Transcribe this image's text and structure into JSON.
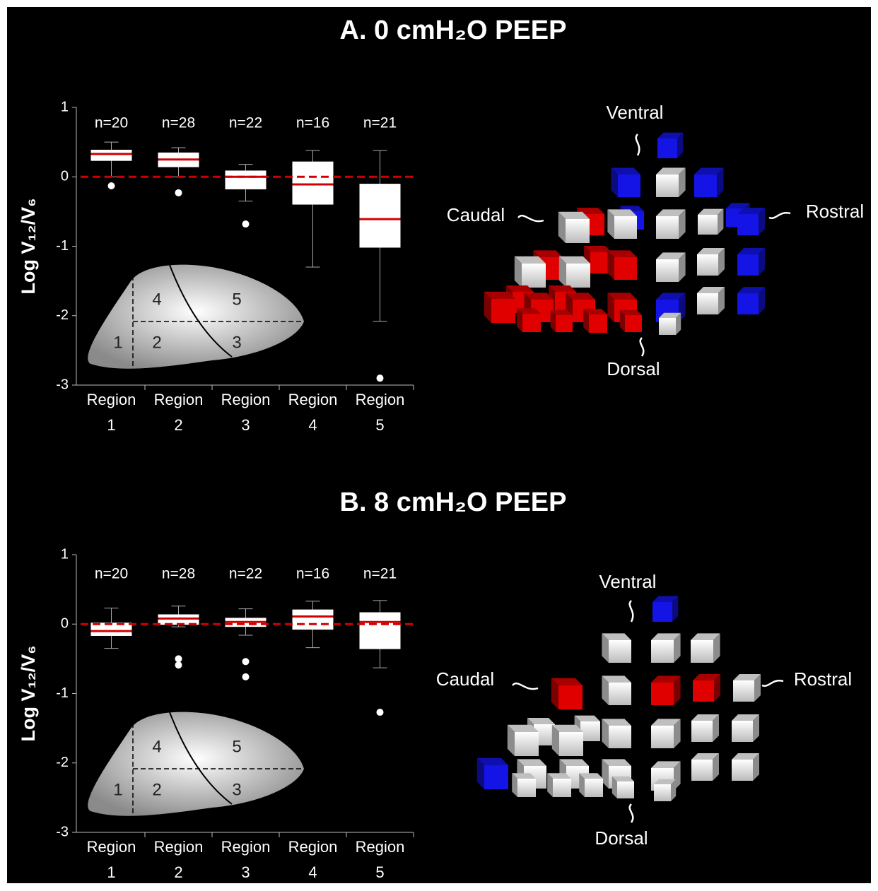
{
  "chart_data": [
    {
      "type": "box",
      "title": "A.  0 cmH₂O PEEP",
      "y_label": "Log V₁₂/V₆",
      "categories": [
        "Region 1",
        "Region 2",
        "Region 3",
        "Region 4",
        "Region 5"
      ],
      "n_labels": [
        "n=20",
        "n=28",
        "n=22",
        "n=16",
        "n=21"
      ],
      "ylim": [
        -3,
        1
      ],
      "yticks": [
        -3,
        -2,
        -1,
        0,
        1
      ],
      "reference_line": 0,
      "reference_color": "#d00000",
      "median_color": "#d00000",
      "box_color": "#ffffff",
      "boxes": [
        {
          "whisker_low": 0.0,
          "q1": 0.23,
          "median": 0.33,
          "q3": 0.39,
          "whisker_high": 0.5,
          "outliers": [
            -0.13
          ]
        },
        {
          "whisker_low": 0.0,
          "q1": 0.14,
          "median": 0.25,
          "q3": 0.35,
          "whisker_high": 0.42,
          "outliers": [
            -0.23
          ]
        },
        {
          "whisker_low": -0.35,
          "q1": -0.18,
          "median": 0.0,
          "q3": 0.09,
          "whisker_high": 0.18,
          "outliers": [
            -0.68
          ]
        },
        {
          "whisker_low": -1.3,
          "q1": -0.4,
          "median": -0.11,
          "q3": 0.22,
          "whisker_high": 0.38,
          "outliers": []
        },
        {
          "whisker_low": -2.08,
          "q1": -1.02,
          "median": -0.61,
          "q3": -0.1,
          "whisker_high": 0.38,
          "outliers": [
            -2.9
          ]
        }
      ],
      "inset_labels": [
        "1",
        "2",
        "3",
        "4",
        "5"
      ],
      "cube_labels": [
        "Ventral",
        "Caudal",
        "Rostral",
        "Dorsal"
      ]
    },
    {
      "type": "box",
      "title": "B.  8 cmH₂O PEEP",
      "y_label": "Log V₁₂/V₆",
      "categories": [
        "Region 1",
        "Region 2",
        "Region 3",
        "Region 4",
        "Region 5"
      ],
      "n_labels": [
        "n=20",
        "n=28",
        "n=22",
        "n=16",
        "n=21"
      ],
      "ylim": [
        -3,
        1
      ],
      "yticks": [
        -3,
        -2,
        -1,
        0,
        1
      ],
      "reference_line": 0,
      "reference_color": "#d00000",
      "median_color": "#d00000",
      "box_color": "#ffffff",
      "boxes": [
        {
          "whisker_low": -0.35,
          "q1": -0.17,
          "median": -0.1,
          "q3": 0.02,
          "whisker_high": 0.23,
          "outliers": []
        },
        {
          "whisker_low": -0.04,
          "q1": -0.01,
          "median": 0.08,
          "q3": 0.14,
          "whisker_high": 0.26,
          "outliers": [
            -0.5,
            -0.59
          ]
        },
        {
          "whisker_low": -0.16,
          "q1": -0.04,
          "median": 0.03,
          "q3": 0.09,
          "whisker_high": 0.22,
          "outliers": [
            -0.54,
            -0.76
          ]
        },
        {
          "whisker_low": -0.34,
          "q1": -0.08,
          "median": 0.11,
          "q3": 0.21,
          "whisker_high": 0.33,
          "outliers": []
        },
        {
          "whisker_low": -0.63,
          "q1": -0.36,
          "median": 0.03,
          "q3": 0.17,
          "whisker_high": 0.34,
          "outliers": [
            -1.27
          ]
        }
      ],
      "inset_labels": [
        "1",
        "2",
        "3",
        "4",
        "5"
      ],
      "cube_labels": [
        "Ventral",
        "Caudal",
        "Rostral",
        "Dorsal"
      ]
    }
  ]
}
